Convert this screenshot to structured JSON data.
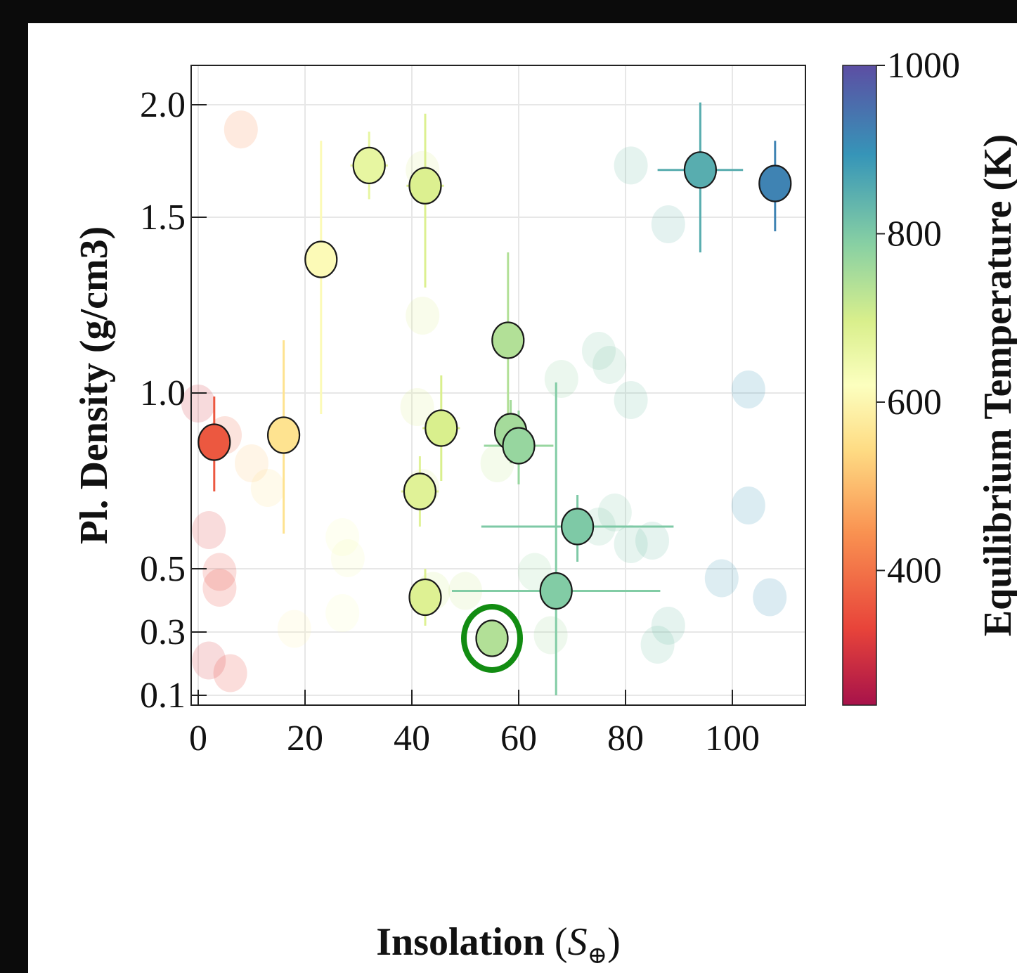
{
  "chart_data": {
    "type": "scatter",
    "xlabel": "Insolation",
    "xlabel_symbol": "S",
    "xlabel_subscript": "⊕",
    "ylabel": "Pl. Density (g/cm3)",
    "colorbar_label": "Equilibrium Temperature (K)",
    "xlim": [
      -2,
      114
    ],
    "ylim": [
      0.1,
      2.1
    ],
    "x_ticks": [
      0,
      20,
      40,
      60,
      80,
      100
    ],
    "y_ticks": [
      0.1,
      0.3,
      0.5,
      1.0,
      1.5,
      2.0
    ],
    "y_tick_labels": [
      "0.1",
      "0.3",
      "0.5",
      "1.0",
      "1.5",
      "2.0"
    ],
    "colorbar_range": [
      240,
      1000
    ],
    "colorbar_ticks": [
      400,
      600,
      800,
      1000
    ],
    "grid": true,
    "highlighted_point": {
      "x": 55,
      "y": 0.28,
      "ring_color": "#128c12"
    },
    "points": [
      {
        "x": 3,
        "y": 0.86,
        "teq": 360,
        "xerr": 0,
        "yerr_lo": 0.14,
        "yerr_hi": 0.13
      },
      {
        "x": 16,
        "y": 0.88,
        "teq": 560,
        "xerr": 0,
        "yerr_lo": 0.28,
        "yerr_hi": 0.27
      },
      {
        "x": 23,
        "y": 1.38,
        "teq": 610,
        "xerr": 0,
        "yerr_lo": 0.44,
        "yerr_hi": 0.46
      },
      {
        "x": 32,
        "y": 1.73,
        "teq": 665,
        "xerr": 3.5,
        "yerr_lo": 0.15,
        "yerr_hi": 0.15
      },
      {
        "x": 42.5,
        "y": 1.64,
        "teq": 690,
        "xerr": 3.5,
        "yerr_lo": 0.34,
        "yerr_hi": 0.32
      },
      {
        "x": 45.5,
        "y": 0.9,
        "teq": 695,
        "xerr": 3.5,
        "yerr_lo": 0.15,
        "yerr_hi": 0.15
      },
      {
        "x": 41.5,
        "y": 0.72,
        "teq": 680,
        "xerr": 3.5,
        "yerr_lo": 0.1,
        "yerr_hi": 0.1
      },
      {
        "x": 42.5,
        "y": 0.41,
        "teq": 685,
        "xerr": 3,
        "yerr_lo": 0.09,
        "yerr_hi": 0.09
      },
      {
        "x": 58,
        "y": 1.15,
        "teq": 740,
        "xerr": 0,
        "yerr_lo": 0.3,
        "yerr_hi": 0.25
      },
      {
        "x": 58.5,
        "y": 0.89,
        "teq": 755,
        "xerr": 0,
        "yerr_lo": 0.09,
        "yerr_hi": 0.09
      },
      {
        "x": 60,
        "y": 0.85,
        "teq": 770,
        "xerr": 6.5,
        "yerr_lo": 0.11,
        "yerr_hi": 0.1
      },
      {
        "x": 71,
        "y": 0.62,
        "teq": 800,
        "xerr": 18,
        "yerr_lo": 0.1,
        "yerr_hi": 0.09
      },
      {
        "x": 67,
        "y": 0.43,
        "teq": 795,
        "xerr": 19.5,
        "yerr_lo": 0.63,
        "yerr_hi": 0.6
      },
      {
        "x": 55,
        "y": 0.28,
        "teq": 740,
        "xerr": 0,
        "yerr_lo": 0,
        "yerr_hi": 0
      },
      {
        "x": 94,
        "y": 1.71,
        "teq": 850,
        "xerr": 8,
        "yerr_lo": 0.31,
        "yerr_hi": 0.3
      },
      {
        "x": 108,
        "y": 1.65,
        "teq": 920,
        "xerr": 0,
        "yerr_lo": 0.19,
        "yerr_hi": 0.19
      }
    ],
    "faded_points": [
      {
        "x": 8,
        "y": 1.89,
        "teq": 430
      },
      {
        "x": 0,
        "y": 0.97,
        "teq": 300
      },
      {
        "x": 5,
        "y": 0.88,
        "teq": 380
      },
      {
        "x": 10,
        "y": 0.8,
        "teq": 520
      },
      {
        "x": 13,
        "y": 0.73,
        "teq": 560
      },
      {
        "x": 2,
        "y": 0.61,
        "teq": 320
      },
      {
        "x": 4,
        "y": 0.49,
        "teq": 340
      },
      {
        "x": 4,
        "y": 0.44,
        "teq": 330
      },
      {
        "x": 2,
        "y": 0.21,
        "teq": 310
      },
      {
        "x": 6,
        "y": 0.17,
        "teq": 330
      },
      {
        "x": 18,
        "y": 0.31,
        "teq": 600
      },
      {
        "x": 27,
        "y": 0.36,
        "teq": 620
      },
      {
        "x": 27,
        "y": 0.59,
        "teq": 630
      },
      {
        "x": 28,
        "y": 0.53,
        "teq": 640
      },
      {
        "x": 42,
        "y": 0.73,
        "teq": 690
      },
      {
        "x": 42,
        "y": 1.22,
        "teq": 690
      },
      {
        "x": 42,
        "y": 1.71,
        "teq": 690
      },
      {
        "x": 41,
        "y": 0.96,
        "teq": 690
      },
      {
        "x": 44,
        "y": 0.43,
        "teq": 700
      },
      {
        "x": 50,
        "y": 0.43,
        "teq": 710
      },
      {
        "x": 56,
        "y": 0.8,
        "teq": 720
      },
      {
        "x": 63,
        "y": 0.49,
        "teq": 770
      },
      {
        "x": 66,
        "y": 0.29,
        "teq": 760
      },
      {
        "x": 68,
        "y": 1.04,
        "teq": 780
      },
      {
        "x": 75,
        "y": 1.12,
        "teq": 800
      },
      {
        "x": 77,
        "y": 1.08,
        "teq": 800
      },
      {
        "x": 75,
        "y": 0.62,
        "teq": 800
      },
      {
        "x": 78,
        "y": 0.66,
        "teq": 800
      },
      {
        "x": 81,
        "y": 0.57,
        "teq": 810
      },
      {
        "x": 81,
        "y": 0.98,
        "teq": 810
      },
      {
        "x": 81,
        "y": 1.73,
        "teq": 820
      },
      {
        "x": 85,
        "y": 0.58,
        "teq": 820
      },
      {
        "x": 86,
        "y": 0.26,
        "teq": 810
      },
      {
        "x": 88,
        "y": 0.32,
        "teq": 820
      },
      {
        "x": 88,
        "y": 1.48,
        "teq": 830
      },
      {
        "x": 98,
        "y": 0.47,
        "teq": 880
      },
      {
        "x": 103,
        "y": 1.01,
        "teq": 890
      },
      {
        "x": 103,
        "y": 0.68,
        "teq": 890
      },
      {
        "x": 107,
        "y": 0.41,
        "teq": 900
      }
    ]
  }
}
